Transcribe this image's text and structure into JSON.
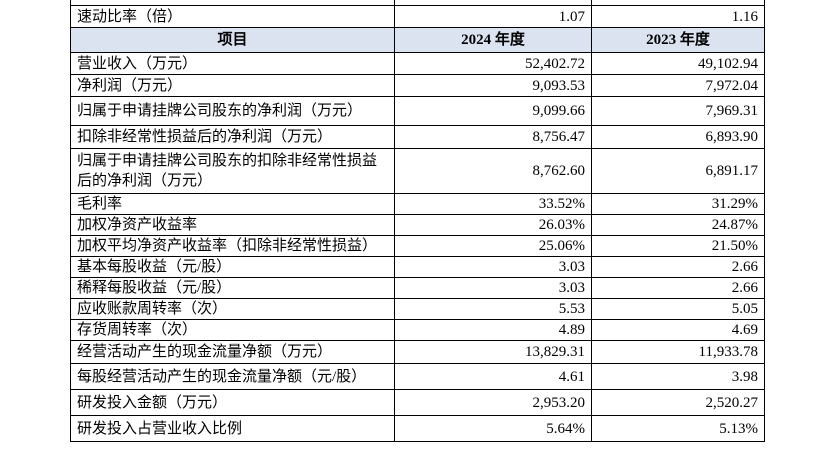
{
  "table": {
    "rows": [
      [
        "速动比率（倍）",
        "1.07",
        "1.16"
      ]
    ],
    "header": [
      "项目",
      "2024 年度",
      "2023 年度"
    ],
    "body": [
      [
        "营业收入（万元）",
        "52,402.72",
        "49,102.94"
      ],
      [
        "净利润（万元）",
        "9,093.53",
        "7,972.04"
      ],
      [
        "归属于申请挂牌公司股东的净利润（万元）",
        "9,099.66",
        "7,969.31"
      ],
      [
        "扣除非经常性损益后的净利润（万元）",
        "8,756.47",
        "6,893.90"
      ],
      [
        "归属于申请挂牌公司股东的扣除非经常性损益后的净利润（万元）",
        "8,762.60",
        "6,891.17"
      ],
      [
        "毛利率",
        "33.52%",
        "31.29%"
      ],
      [
        "加权净资产收益率",
        "26.03%",
        "24.87%"
      ],
      [
        "加权平均净资产收益率（扣除非经常性损益）",
        "25.06%",
        "21.50%"
      ],
      [
        "基本每股收益（元/股）",
        "3.03",
        "2.66"
      ],
      [
        "稀释每股收益（元/股）",
        "3.03",
        "2.66"
      ],
      [
        "应收账款周转率（次）",
        "5.53",
        "5.05"
      ],
      [
        "存货周转率（次）",
        "4.89",
        "4.69"
      ],
      [
        "经营活动产生的现金流量净额（万元）",
        "13,829.31",
        "11,933.78"
      ],
      [
        "每股经营活动产生的现金流量净额（元/股）",
        "4.61",
        "3.98"
      ],
      [
        "研发投入金额（万元）",
        "2,953.20",
        "2,520.27"
      ],
      [
        "研发投入占营业收入比例",
        "5.64%",
        "5.13%"
      ]
    ]
  }
}
